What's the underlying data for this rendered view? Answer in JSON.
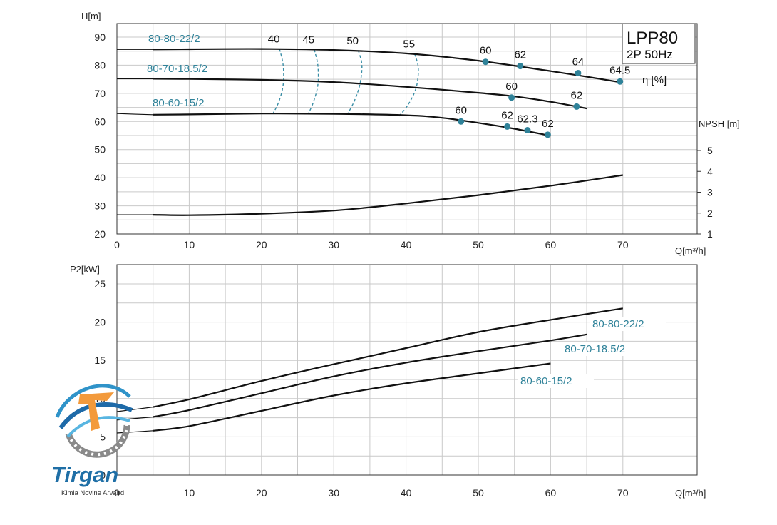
{
  "chart_data": [
    {
      "type": "line",
      "title": "LPP80",
      "subtitle": "2P  50Hz",
      "xlabel": "Q[m³/h]",
      "ylabel": "H[m]",
      "ylabel_right": "NPSH [m]",
      "efficiency_label": "η [%]",
      "xlim": [
        0,
        80
      ],
      "ylim": [
        20,
        94
      ],
      "x_ticks": [
        "0",
        "10",
        "20",
        "30",
        "40",
        "50",
        "60",
        "70"
      ],
      "y_ticks": [
        "20",
        "30",
        "40",
        "50",
        "60",
        "70",
        "80",
        "90"
      ],
      "npsh_ylim": [
        0.8,
        7.3
      ],
      "npsh_ticks": [
        "1",
        "2",
        "3",
        "4",
        "5"
      ],
      "grid": true,
      "series": [
        {
          "name": "80-80-22/2",
          "x": [
            0,
            5,
            10,
            20,
            30,
            40,
            50,
            60,
            65,
            70
          ],
          "y": [
            85.6,
            85.6,
            85.7,
            85.8,
            85.4,
            84.2,
            81.6,
            77.9,
            75.9,
            73.8
          ]
        },
        {
          "name": "80-70-18.5/2",
          "x": [
            0,
            5,
            10,
            20,
            30,
            40,
            50,
            55,
            60,
            65
          ],
          "y": [
            75.2,
            75.2,
            75.1,
            74.8,
            74.0,
            72.3,
            70.2,
            68.9,
            67.0,
            64.6
          ]
        },
        {
          "name": "80-60-15/2",
          "x": [
            0,
            5,
            10,
            20,
            30,
            40,
            45,
            50,
            55,
            60
          ],
          "y": [
            62.8,
            62.4,
            62.5,
            62.8,
            62.7,
            62.2,
            61.3,
            59.5,
            57.4,
            54.9
          ]
        },
        {
          "name": "NPSH",
          "axis": "right",
          "x": [
            0,
            5,
            10,
            20,
            30,
            40,
            50,
            60,
            70
          ],
          "y": [
            1.92,
            1.92,
            1.9,
            1.97,
            2.12,
            2.46,
            2.86,
            3.31,
            3.82
          ]
        }
      ],
      "efficiency_points": [
        {
          "curve": "80-80-22/2",
          "x": 51.0,
          "y": 81.2,
          "label": "60"
        },
        {
          "curve": "80-80-22/2",
          "x": 55.8,
          "y": 79.7,
          "label": "62"
        },
        {
          "curve": "80-80-22/2",
          "x": 63.8,
          "y": 77.2,
          "label": "64"
        },
        {
          "curve": "80-80-22/2",
          "x": 69.6,
          "y": 74.2,
          "label": "64.5"
        },
        {
          "curve": "80-70-18.5/2",
          "x": 54.6,
          "y": 68.5,
          "label": "60"
        },
        {
          "curve": "80-70-18.5/2",
          "x": 63.6,
          "y": 65.3,
          "label": "62"
        },
        {
          "curve": "80-60-15/2",
          "x": 47.6,
          "y": 60.0,
          "label": "60"
        },
        {
          "curve": "80-60-15/2",
          "x": 54.0,
          "y": 58.2,
          "label": "62"
        },
        {
          "curve": "80-60-15/2",
          "x": 56.8,
          "y": 56.9,
          "label": "62.3"
        },
        {
          "curve": "80-60-15/2",
          "x": 59.6,
          "y": 55.3,
          "label": "62"
        }
      ],
      "iso_efficiency": [
        {
          "label": "40",
          "x": [
            22.5,
            23.0,
            23.0,
            22.4,
            21.6
          ],
          "y": [
            85.8,
            80.0,
            73.0,
            67.0,
            62.8
          ]
        },
        {
          "label": "45",
          "x": [
            27.3,
            27.8,
            27.8,
            27.2,
            26.5
          ],
          "y": [
            85.6,
            80.0,
            73.0,
            67.0,
            62.8
          ]
        },
        {
          "label": "50",
          "x": [
            33.4,
            33.9,
            33.6,
            32.8,
            31.9
          ],
          "y": [
            85.2,
            80.0,
            73.0,
            67.0,
            62.6
          ]
        },
        {
          "label": "55",
          "x": [
            41.2,
            41.7,
            41.4,
            40.3,
            39.0
          ],
          "y": [
            84.0,
            79.0,
            72.0,
            66.0,
            61.8
          ]
        }
      ]
    },
    {
      "type": "line",
      "xlabel": "Q[m³/h]",
      "ylabel": "P2[kW]",
      "xlim": [
        0,
        80
      ],
      "ylim": [
        0,
        27
      ],
      "x_ticks": [
        "0",
        "10",
        "20",
        "30",
        "40",
        "50",
        "60",
        "70"
      ],
      "y_ticks": [
        "0",
        "5",
        "10",
        "15",
        "20",
        "25"
      ],
      "grid": true,
      "series": [
        {
          "name": "80-80-22/2",
          "x": [
            0,
            5,
            10,
            20,
            30,
            40,
            50,
            60,
            70
          ],
          "y": [
            8.3,
            8.9,
            9.9,
            12.3,
            14.5,
            16.6,
            18.7,
            20.3,
            21.8
          ]
        },
        {
          "name": "80-70-18.5/2",
          "x": [
            0,
            5,
            10,
            20,
            30,
            40,
            50,
            60,
            65
          ],
          "y": [
            7.2,
            7.6,
            8.5,
            10.7,
            12.9,
            14.7,
            16.2,
            17.6,
            18.4
          ]
        },
        {
          "name": "80-60-15/2",
          "x": [
            0,
            5,
            10,
            20,
            30,
            40,
            50,
            60
          ],
          "y": [
            5.5,
            5.8,
            6.4,
            8.4,
            10.4,
            12.0,
            13.3,
            14.6
          ]
        }
      ]
    }
  ],
  "logo": {
    "name": "Tirgan",
    "tagline": "Kimia Novine Arvand"
  }
}
